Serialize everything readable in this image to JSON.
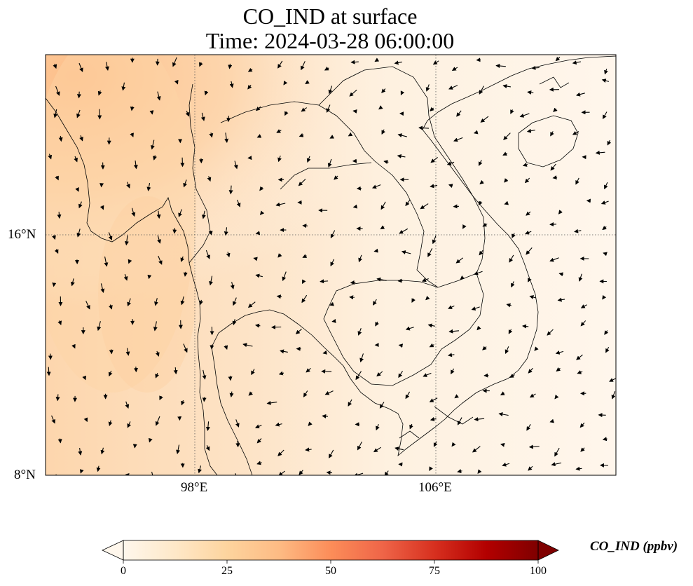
{
  "title": {
    "line1": "CO_IND at surface",
    "line2": "Time: 2024-03-28 06:00:00"
  },
  "map": {
    "lon_range": [
      93.0,
      112.0
    ],
    "lat_range": [
      8.0,
      22.0
    ],
    "lon_ticks": [
      {
        "value": 98,
        "label": "98°E"
      },
      {
        "value": 106,
        "label": "106°E"
      }
    ],
    "lat_ticks": [
      {
        "value": 16,
        "label": "16°N"
      },
      {
        "value": 8,
        "label": "8°N"
      }
    ],
    "gridlines": "dotted",
    "colormap": "OrRd",
    "field_description_levels": {
      "max_region": "northwest (Myanmar)",
      "approx_range_ppbv": [
        0,
        30
      ]
    }
  },
  "colorbar": {
    "label": "CO_IND (ppbv)",
    "min": 0,
    "max": 100,
    "extend": "both",
    "ticks": [
      0,
      25,
      50,
      75,
      100
    ],
    "tick_labels": [
      "0",
      "25",
      "50",
      "75",
      "100"
    ],
    "colors": [
      "#fff7ec",
      "#fee8c8",
      "#fdd49e",
      "#fdbb84",
      "#fc8d59",
      "#ef6548",
      "#d7301f",
      "#b30000",
      "#7f0000"
    ]
  }
}
